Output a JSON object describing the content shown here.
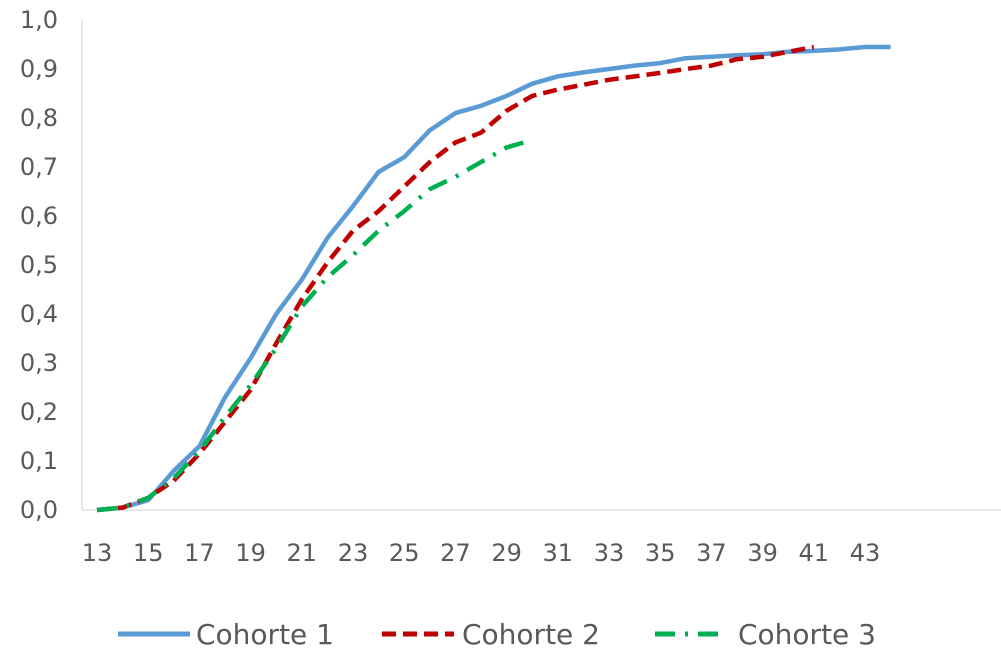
{
  "chart_data": {
    "type": "line",
    "title": "",
    "xlabel": "",
    "ylabel": "",
    "x": [
      13,
      14,
      15,
      16,
      17,
      18,
      19,
      20,
      21,
      22,
      23,
      24,
      25,
      26,
      27,
      28,
      29,
      30,
      31,
      32,
      33,
      34,
      35,
      36,
      37,
      38,
      39,
      40,
      41,
      42,
      43,
      44
    ],
    "xlim": [
      13,
      44
    ],
    "x_tick_labels": [
      "13",
      "15",
      "17",
      "19",
      "21",
      "23",
      "25",
      "27",
      "29",
      "31",
      "33",
      "35",
      "37",
      "39",
      "41",
      "43"
    ],
    "ylim": [
      0,
      1.0
    ],
    "y_tick_labels": [
      "0,0",
      "0,1",
      "0,2",
      "0,3",
      "0,4",
      "0,5",
      "0,6",
      "0,7",
      "0,8",
      "0,9",
      "1,0"
    ],
    "grid": false,
    "legend_position": "bottom",
    "series": [
      {
        "name": "Cohorte 1",
        "color": "#5B9BD5",
        "style": "solid",
        "values": [
          0.0,
          0.005,
          0.02,
          0.08,
          0.13,
          0.23,
          0.31,
          0.4,
          0.47,
          0.555,
          0.62,
          0.69,
          0.72,
          0.775,
          0.81,
          0.825,
          0.845,
          0.87,
          0.885,
          0.893,
          0.9,
          0.907,
          0.912,
          0.922,
          0.925,
          0.928,
          0.93,
          0.935,
          0.937,
          0.94,
          0.945,
          0.945
        ]
      },
      {
        "name": "Cohorte 2",
        "color": "#C00000",
        "style": "dashed",
        "values": [
          0.0,
          0.005,
          0.025,
          0.06,
          0.115,
          0.18,
          0.245,
          0.34,
          0.43,
          0.505,
          0.57,
          0.61,
          0.66,
          0.71,
          0.75,
          0.77,
          0.815,
          0.845,
          0.858,
          0.868,
          0.878,
          0.885,
          0.892,
          0.9,
          0.907,
          0.92,
          0.925,
          0.935,
          0.945,
          null,
          null,
          null
        ]
      },
      {
        "name": "Cohorte 3",
        "color": "#00B050",
        "style": "dashdot",
        "values": [
          0.0,
          0.005,
          0.025,
          0.065,
          0.12,
          0.19,
          0.255,
          0.33,
          0.415,
          0.475,
          0.52,
          0.57,
          0.61,
          0.655,
          0.68,
          0.71,
          0.74,
          0.755,
          null,
          null,
          null,
          null,
          null,
          null,
          null,
          null,
          null,
          null,
          null,
          null,
          null,
          null
        ]
      }
    ]
  }
}
